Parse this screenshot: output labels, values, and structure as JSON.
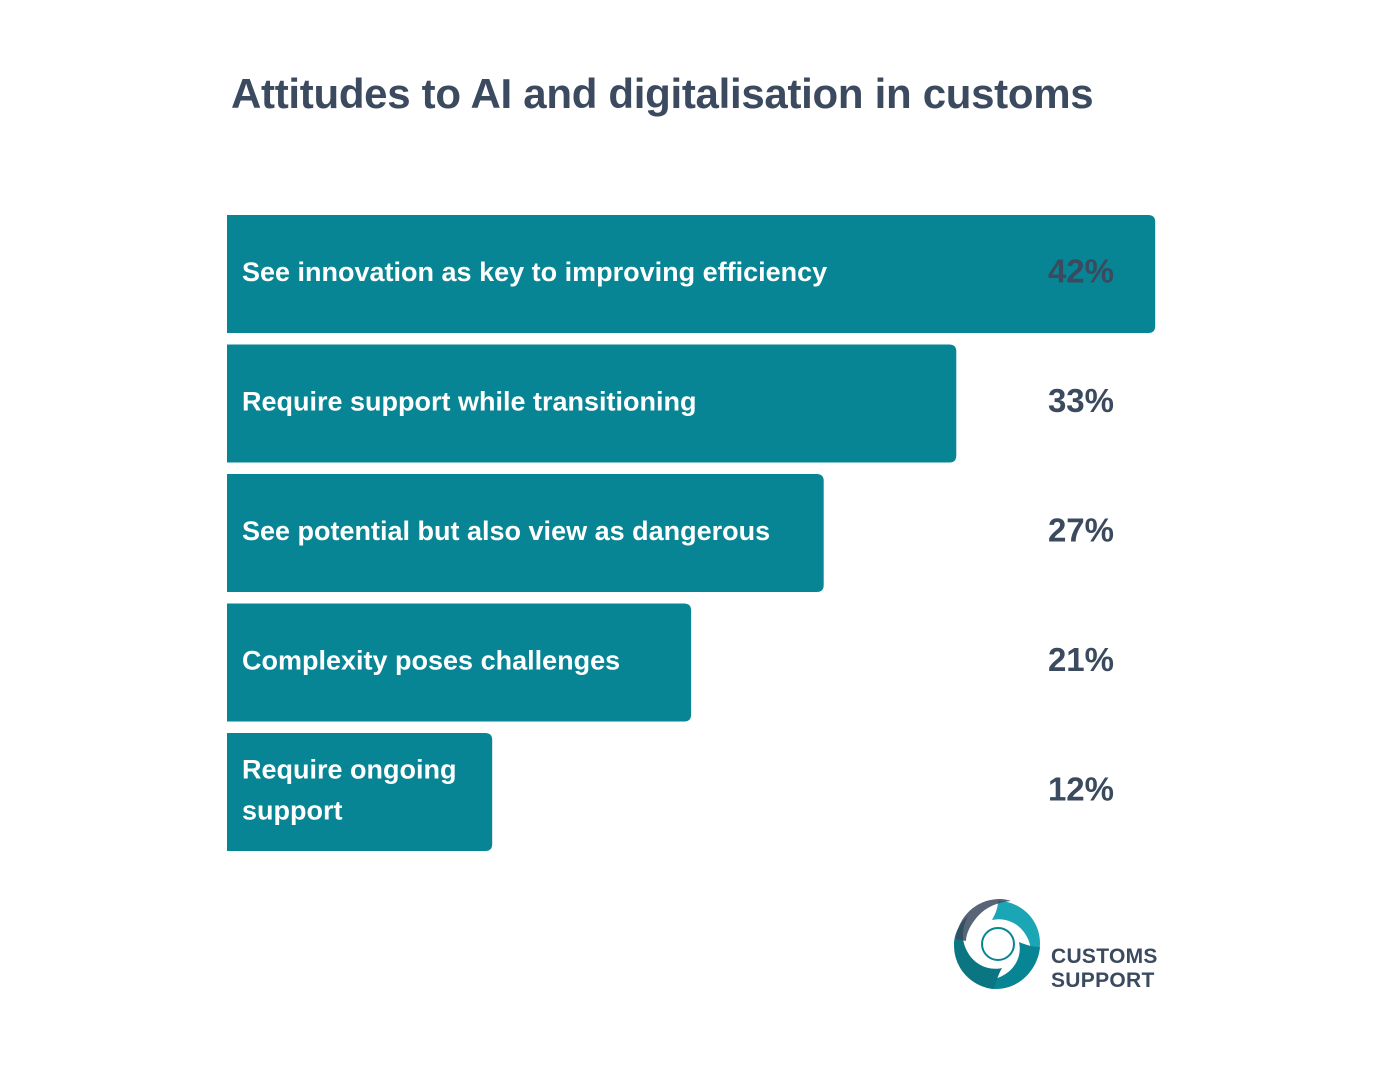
{
  "chart_data": {
    "type": "bar",
    "orientation": "horizontal",
    "title": "Attitudes to AI and digitalisation in customs",
    "categories": [
      [
        "See innovation as key to improving efficiency"
      ],
      [
        "Require support while transitioning"
      ],
      [
        "See potential but also view as dangerous"
      ],
      [
        "Complexity poses challenges"
      ],
      [
        "Require ongoing",
        "support"
      ]
    ],
    "values": [
      42,
      33,
      27,
      21,
      12
    ],
    "value_labels": [
      "42%",
      "33%",
      "27%",
      "21%",
      "12%"
    ],
    "unit": "%",
    "bar_color": "#088594",
    "value_color": "#3b4a5e",
    "grid": false,
    "legend": "none"
  },
  "logo": {
    "line1": "CUSTOMS",
    "line2": "SUPPORT",
    "icon": "customs-support-swirl-logo",
    "colors": [
      "#088594",
      "#1aa6b5",
      "#3b4a5e"
    ]
  }
}
